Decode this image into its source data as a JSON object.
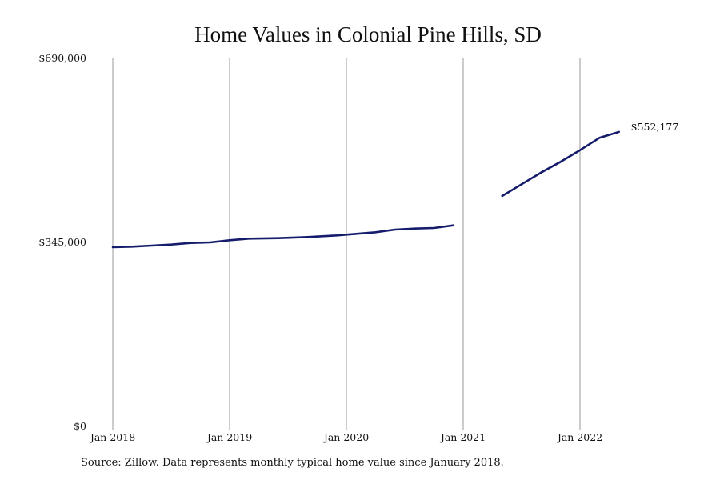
{
  "chart_data": {
    "type": "line",
    "title": "Home Values in Colonial Pine Hills, SD",
    "xlabel": "",
    "ylabel": "",
    "x_tick_labels": [
      "Jan 2018",
      "Jan 2019",
      "Jan 2020",
      "Jan 2021",
      "Jan 2022"
    ],
    "y_tick_labels": [
      "$0",
      "$345,000",
      "$690,000"
    ],
    "ylim": [
      0,
      690000
    ],
    "grid": "vertical",
    "legend": "none",
    "line_color": "#141c6b",
    "end_label": "$552,177",
    "series": [
      {
        "values": [
          {
            "x": "2018-01",
            "y": 336000
          },
          {
            "x": "2018-03",
            "y": 337000
          },
          {
            "x": "2018-05",
            "y": 339000
          },
          {
            "x": "2018-07",
            "y": 341000
          },
          {
            "x": "2018-09",
            "y": 344000
          },
          {
            "x": "2018-11",
            "y": 345000
          },
          {
            "x": "2019-01",
            "y": 349000
          },
          {
            "x": "2019-03",
            "y": 352000
          },
          {
            "x": "2019-06",
            "y": 353000
          },
          {
            "x": "2019-09",
            "y": 355000
          },
          {
            "x": "2019-12",
            "y": 358000
          },
          {
            "x": "2020-02",
            "y": 361000
          },
          {
            "x": "2020-04",
            "y": 364000
          },
          {
            "x": "2020-06",
            "y": 369000
          },
          {
            "x": "2020-08",
            "y": 371000
          },
          {
            "x": "2020-10",
            "y": 372000
          },
          {
            "x": "2020-12",
            "y": 377000
          }
        ]
      },
      {
        "values": [
          {
            "x": "2021-05",
            "y": 432000
          },
          {
            "x": "2021-07",
            "y": 454000
          },
          {
            "x": "2021-09",
            "y": 476000
          },
          {
            "x": "2021-11",
            "y": 496000
          },
          {
            "x": "2022-01",
            "y": 518000
          },
          {
            "x": "2022-03",
            "y": 541000
          },
          {
            "x": "2022-05",
            "y": 552177
          }
        ]
      }
    ]
  },
  "footer": {
    "source_note": "Source: Zillow. Data represents monthly typical home value since January 2018."
  }
}
